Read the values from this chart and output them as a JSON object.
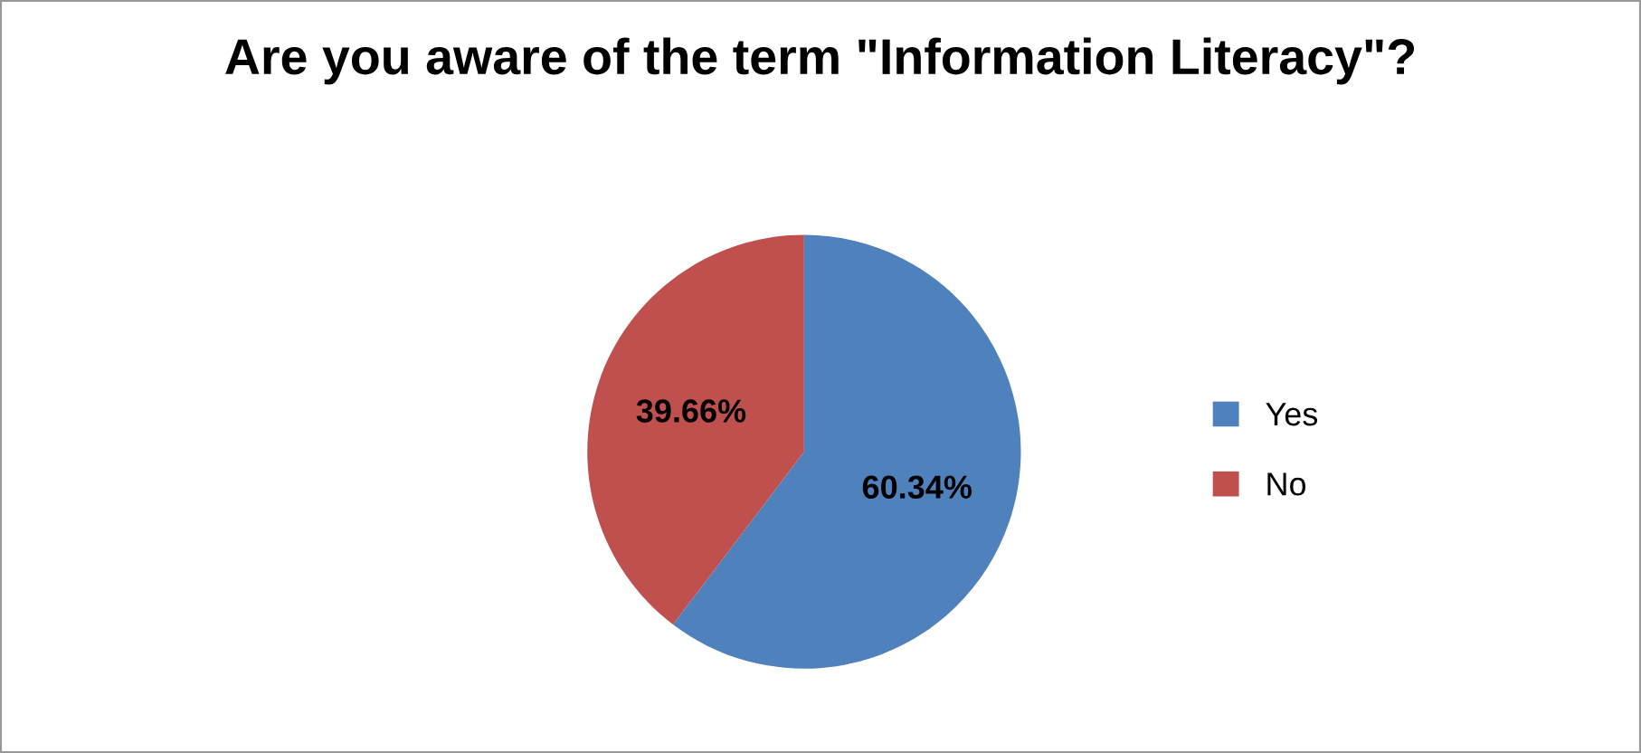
{
  "chart_data": {
    "type": "pie",
    "title": "Are you aware of the term \"Information Literacy\"?",
    "categories": [
      "Yes",
      "No"
    ],
    "values": [
      60.34,
      39.66
    ],
    "colors": [
      "#4f81bd",
      "#c0504d"
    ],
    "value_labels": [
      "60.34%",
      "39.66%"
    ],
    "legend": "right"
  }
}
